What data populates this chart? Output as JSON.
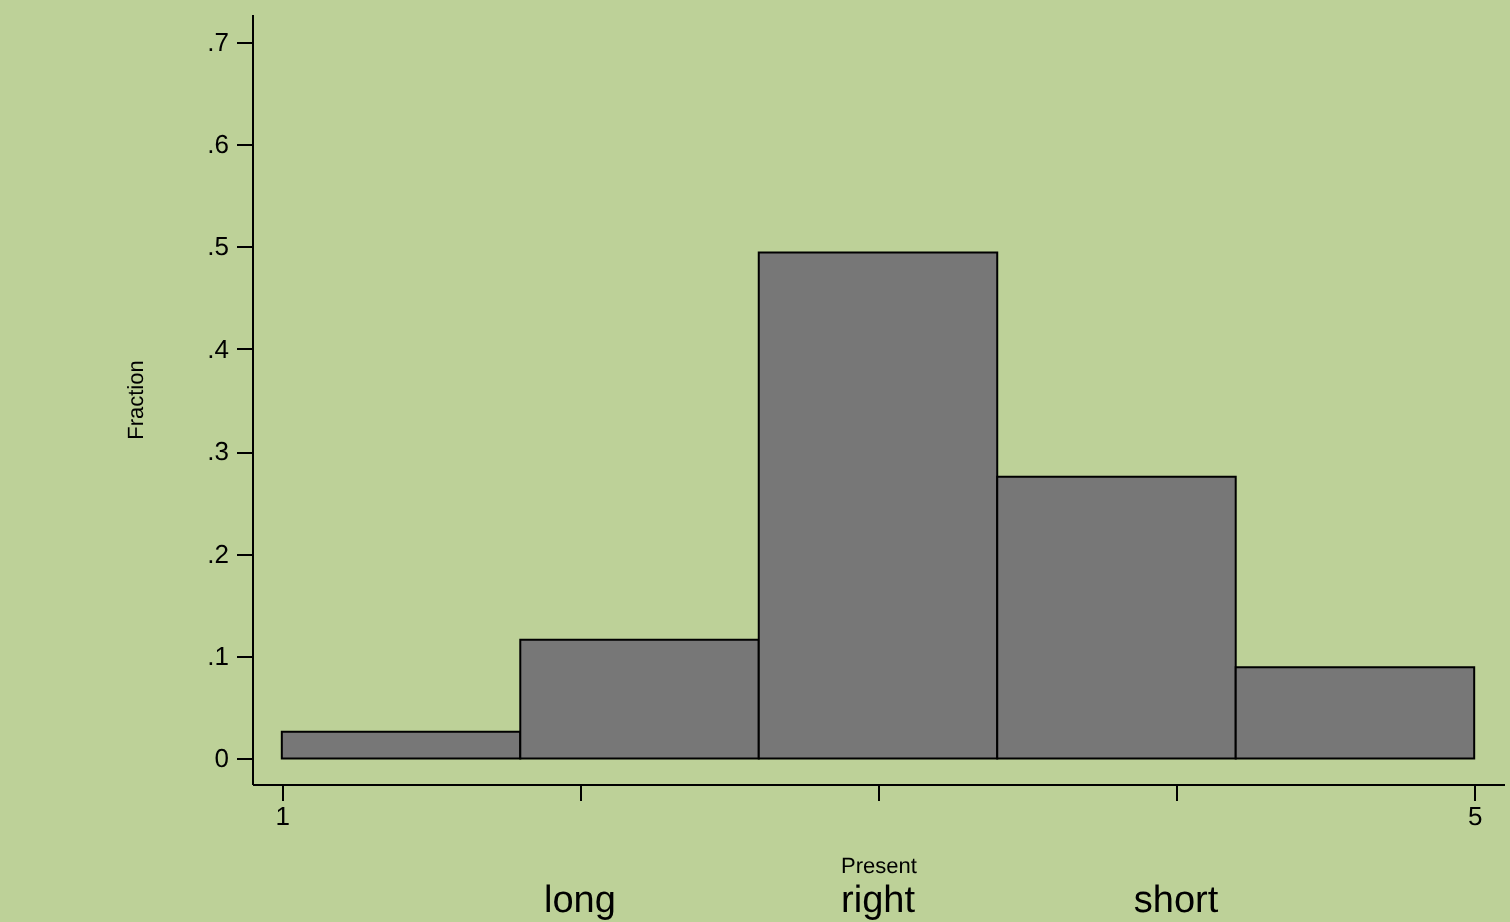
{
  "chart_data": {
    "type": "histogram",
    "xlabel": "Present",
    "ylabel": "Fraction",
    "bins": [
      1,
      1.8,
      2.6,
      3.4,
      4.2,
      5
    ],
    "values": [
      0.026,
      0.116,
      0.494,
      0.275,
      0.089
    ],
    "color": "#777777",
    "xlim": [
      0.9,
      5.1
    ],
    "ylim": [
      -0.025,
      0.727
    ],
    "xticks": [
      1,
      {
        "value": 2,
        "label": null
      },
      {
        "value": 3,
        "label": null
      },
      {
        "value": 4,
        "label": null
      },
      5
    ],
    "yticks": [
      0,
      {
        "value": 0.1,
        "label": ".1"
      },
      {
        "value": 0.2,
        "label": ".2"
      },
      {
        "value": 0.3,
        "label": ".3"
      },
      {
        "value": 0.4,
        "label": ".4"
      },
      {
        "value": 0.5,
        "label": ".5"
      },
      {
        "value": 0.6,
        "label": ".6"
      },
      {
        "value": 0.7,
        "label": ".7"
      }
    ],
    "annotations": [
      "long",
      "right",
      "short"
    ],
    "grid": false
  }
}
